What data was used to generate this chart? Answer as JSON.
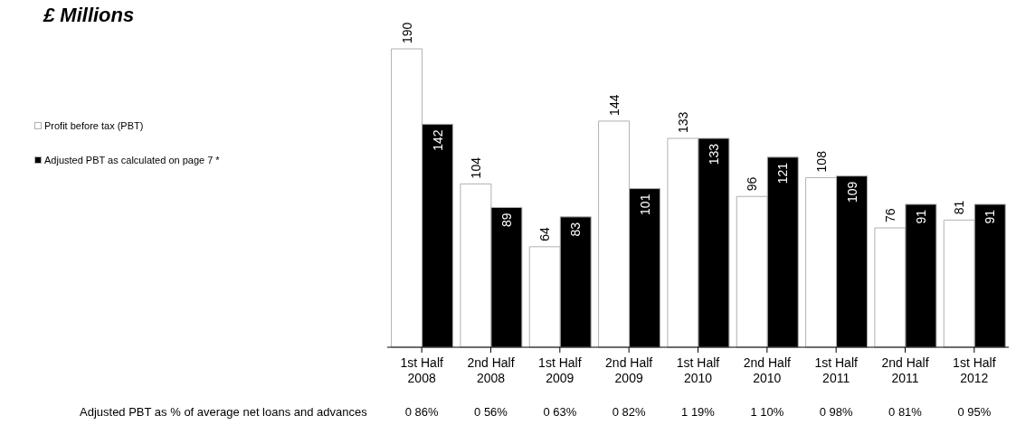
{
  "chart_data": {
    "type": "bar",
    "title": "£ Millions",
    "categories": [
      "1st Half 2008",
      "2nd Half 2008",
      "1st Half 2009",
      "2nd Half 2009",
      "1st Half 2010",
      "2nd Half 2010",
      "1st Half 2011",
      "2nd Half 2011",
      "1st Half 2012"
    ],
    "series": [
      {
        "name": "Profit before tax (PBT)",
        "color": "#ffffff",
        "values": [
          190,
          104,
          64,
          144,
          133,
          96,
          108,
          76,
          81
        ]
      },
      {
        "name": "Adjusted PBT as calculated on page 7 *",
        "color": "#000000",
        "values": [
          142,
          89,
          83,
          101,
          133,
          121,
          109,
          91,
          91
        ]
      }
    ],
    "data_labels": true,
    "legend": "left",
    "grid": false,
    "annotations": [
      "Adjusted PBT as % of average net loans and advances",
      "0 86%",
      "0 56%",
      "0 63%",
      "0 82%",
      "1 19%",
      "1 10%",
      "0 98%",
      "0 81%",
      "0 95%"
    ]
  }
}
